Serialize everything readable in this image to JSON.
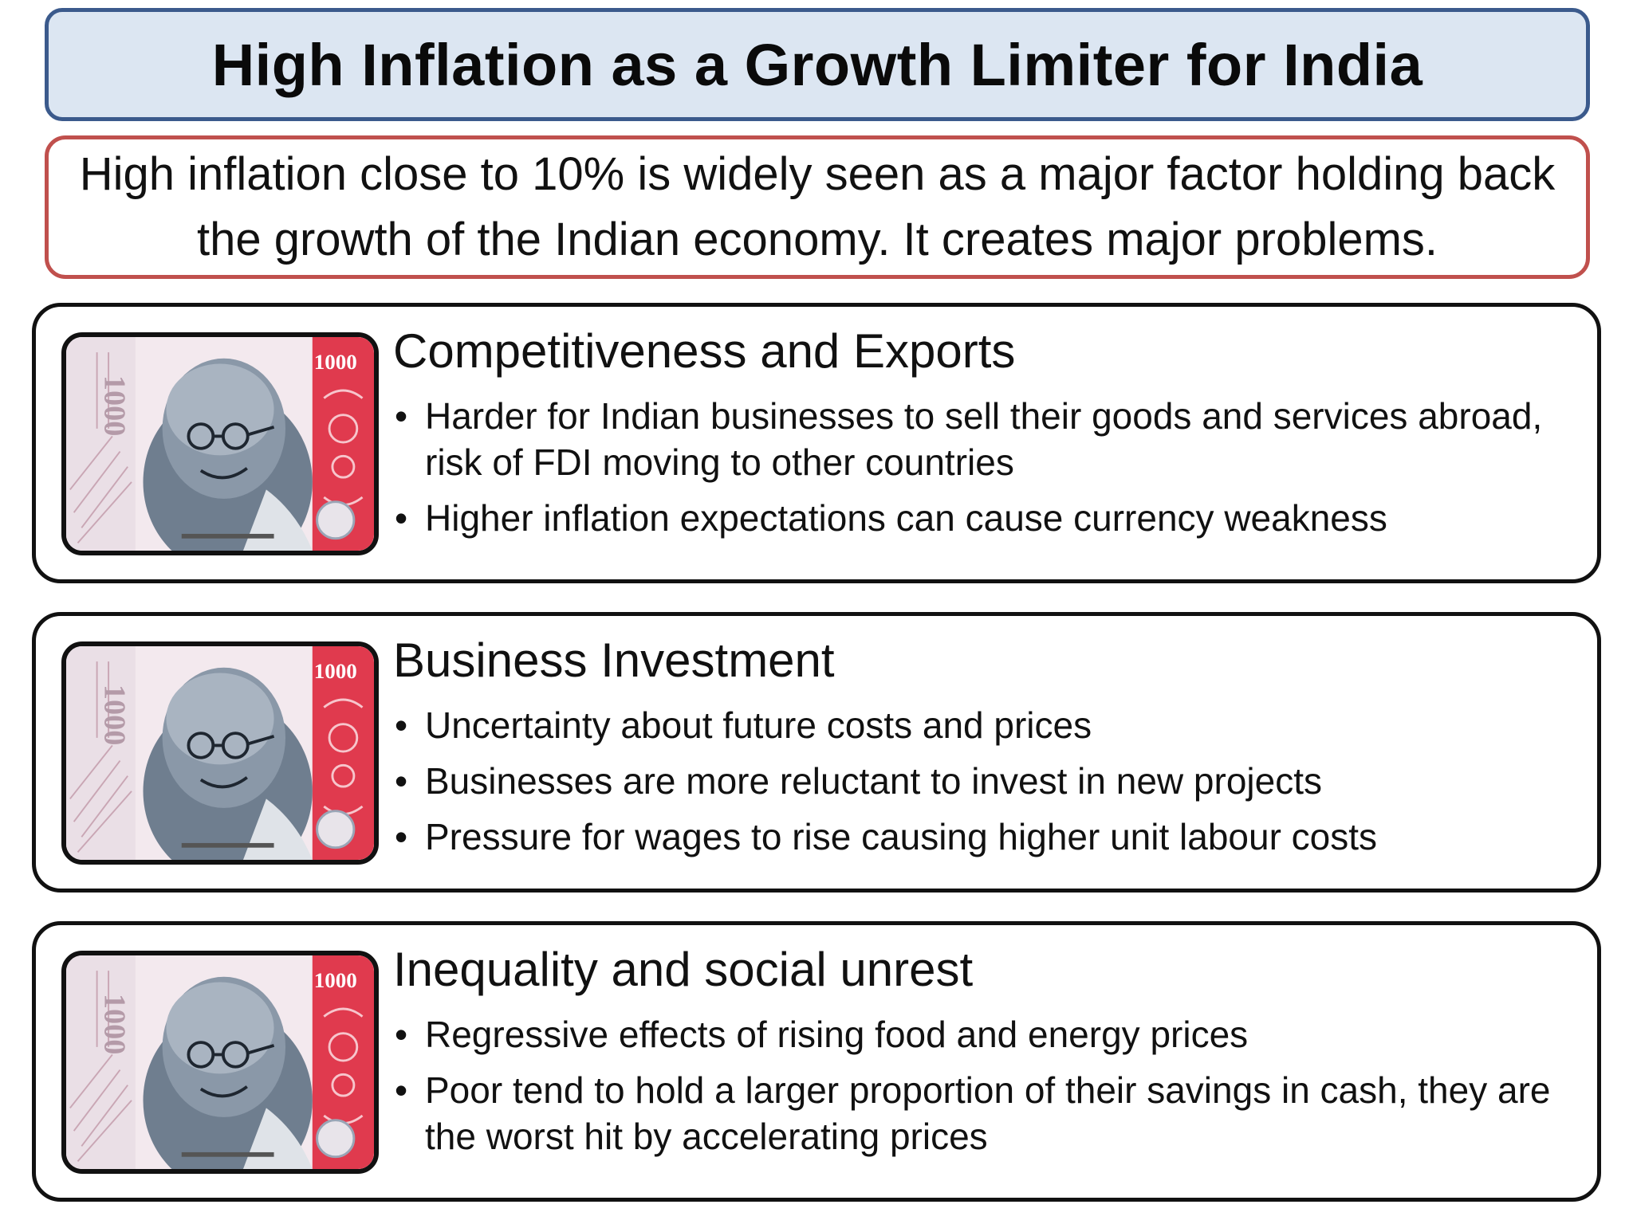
{
  "title": "High Inflation as a Growth Limiter for India",
  "intro": "High inflation close to 10% is widely seen as a major factor holding back the growth of the Indian economy. It creates major problems.",
  "banknote": {
    "denomination": "1000",
    "icon": "rupee-1000-banknote-image"
  },
  "sections": [
    {
      "heading": "Competitiveness and Exports",
      "bullets": [
        "Harder for Indian businesses to sell their goods and services abroad, risk of FDI moving to other countries",
        "Higher inflation expectations can cause currency weakness"
      ]
    },
    {
      "heading": "Business Investment",
      "bullets": [
        "Uncertainty about future costs and prices",
        "Businesses are more reluctant to invest in new projects",
        "Pressure for wages to rise causing higher unit labour costs"
      ]
    },
    {
      "heading": "Inequality and social unrest",
      "bullets": [
        "Regressive effects of rising food and energy prices",
        "Poor tend to hold a larger proportion of their savings in cash, they are the worst hit by accelerating prices"
      ]
    }
  ],
  "colors": {
    "title_bg": "#dce6f2",
    "title_border": "#3b5a8c",
    "intro_border": "#c0504d",
    "card_border": "#111111",
    "note_red": "#e03a4e",
    "note_pink": "#f3e9ee"
  }
}
